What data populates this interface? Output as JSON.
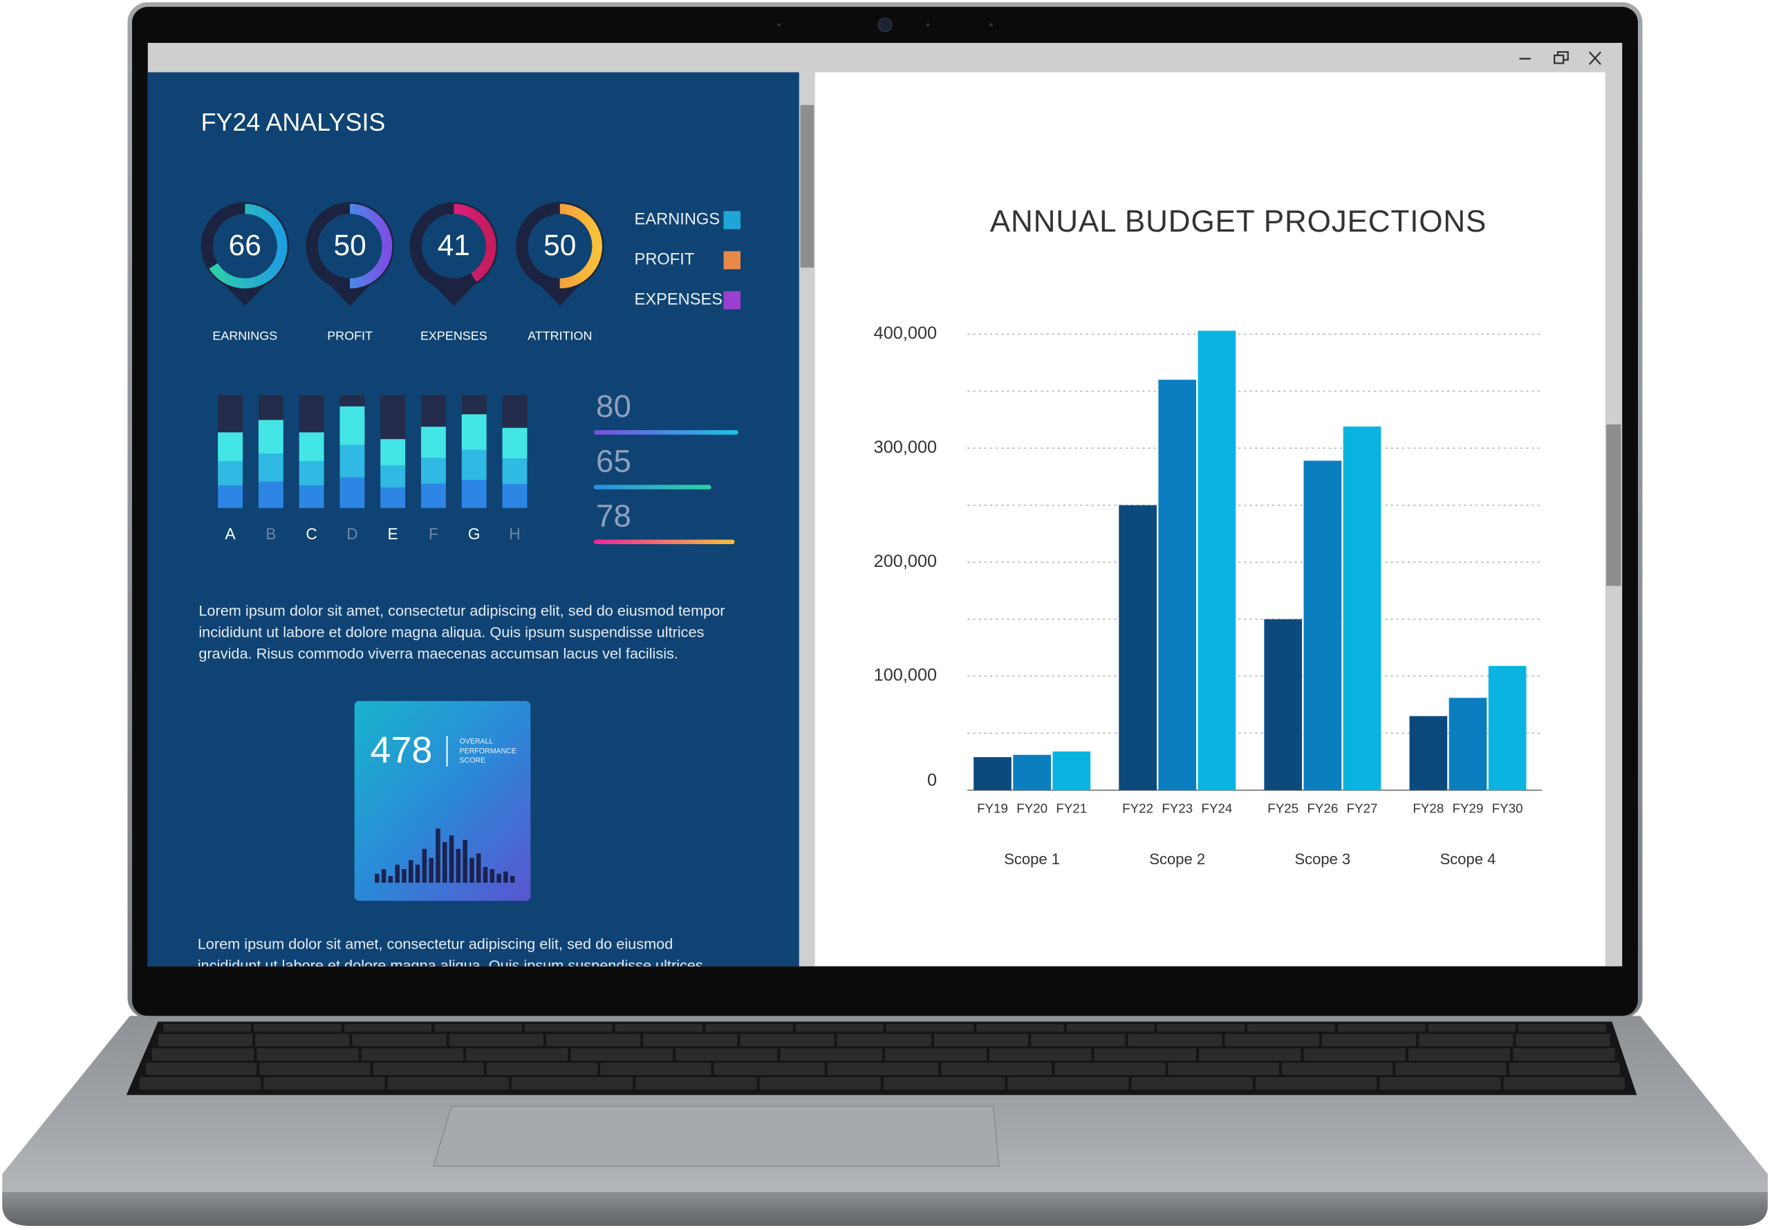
{
  "dashboard": {
    "title": "FY24 ANALYSIS",
    "gauges": [
      {
        "label": "EARNINGS",
        "value": 66,
        "colors": [
          "#2fd3a4",
          "#1f9fe0"
        ]
      },
      {
        "label": "PROFIT",
        "value": 50,
        "colors": [
          "#19c4f0",
          "#7b4fe3"
        ]
      },
      {
        "label": "EXPENSES",
        "value": 41,
        "colors": [
          "#f0239a",
          "#c41c5c"
        ]
      },
      {
        "label": "ATTRITION",
        "value": 50,
        "colors": [
          "#f57b3a",
          "#f5c23a"
        ]
      }
    ],
    "legend": [
      {
        "label": "EARNINGS",
        "color": "#1fa6d6"
      },
      {
        "label": "PROFIT",
        "color": "#e8894a"
      },
      {
        "label": "EXPENSES",
        "color": "#9a3fd0"
      }
    ],
    "bar_chart": {
      "categories": [
        "A",
        "B",
        "C",
        "D",
        "E",
        "F",
        "G",
        "H"
      ],
      "values": [
        67,
        78,
        67,
        90,
        61,
        72,
        83,
        71
      ],
      "ylim": [
        0,
        100
      ]
    },
    "progress": {
      "xlim": [
        0,
        100
      ],
      "items": [
        {
          "value": 80,
          "colors": [
            "#7b4fe3",
            "#19c6e6"
          ]
        },
        {
          "value": 65,
          "colors": [
            "#2a8fe6",
            "#2fd3a4"
          ]
        },
        {
          "value": 78,
          "colors": [
            "#f0239a",
            "#f5c23a"
          ]
        }
      ]
    },
    "paragraph_1": [
      "Lorem ipsum dolor sit amet, consectetur adipiscing elit, sed do eiusmod tempor",
      "incididunt ut labore et dolore magna aliqua. Quis ipsum suspendisse ultrices",
      "gravida. Risus commodo viverra maecenas accumsan lacus vel facilisis."
    ],
    "score": {
      "value": 478,
      "caption": [
        "OVERALL",
        "PERFORMANCE",
        "SCORE"
      ]
    },
    "paragraph_2": [
      "Lorem ipsum dolor sit amet, consectetur adipiscing elit, sed do eiusmod",
      "incididunt ut labore et dolore magna aliqua. Quis ipsum suspendisse ultrices"
    ]
  },
  "chart_data": {
    "type": "bar",
    "title": "ANNUAL BUDGET PROJECTIONS",
    "groups": [
      "Scope 1",
      "Scope 2",
      "Scope 3",
      "Scope 4"
    ],
    "categories": [
      "FY19",
      "FY20",
      "FY21",
      "FY22",
      "FY23",
      "FY24",
      "FY25",
      "FY26",
      "FY27",
      "FY28",
      "FY29",
      "FY30"
    ],
    "values": [
      29000,
      31000,
      34000,
      250000,
      360000,
      403000,
      150000,
      289000,
      319000,
      65000,
      81000,
      109000
    ],
    "colors": [
      "#0c4a7e",
      "#0b7ec0",
      "#0bb4e0"
    ],
    "ylim": [
      0,
      400000
    ],
    "yticks": [
      0,
      {
        "value": 100000,
        "label": "100,000"
      },
      {
        "value": 200000,
        "label": "200,000"
      },
      {
        "value": 300000,
        "label": "300,000"
      },
      {
        "value": 400000,
        "label": "400,000"
      }
    ],
    "minor_yticks": [
      50000,
      150000,
      250000,
      350000
    ],
    "grid": true
  }
}
